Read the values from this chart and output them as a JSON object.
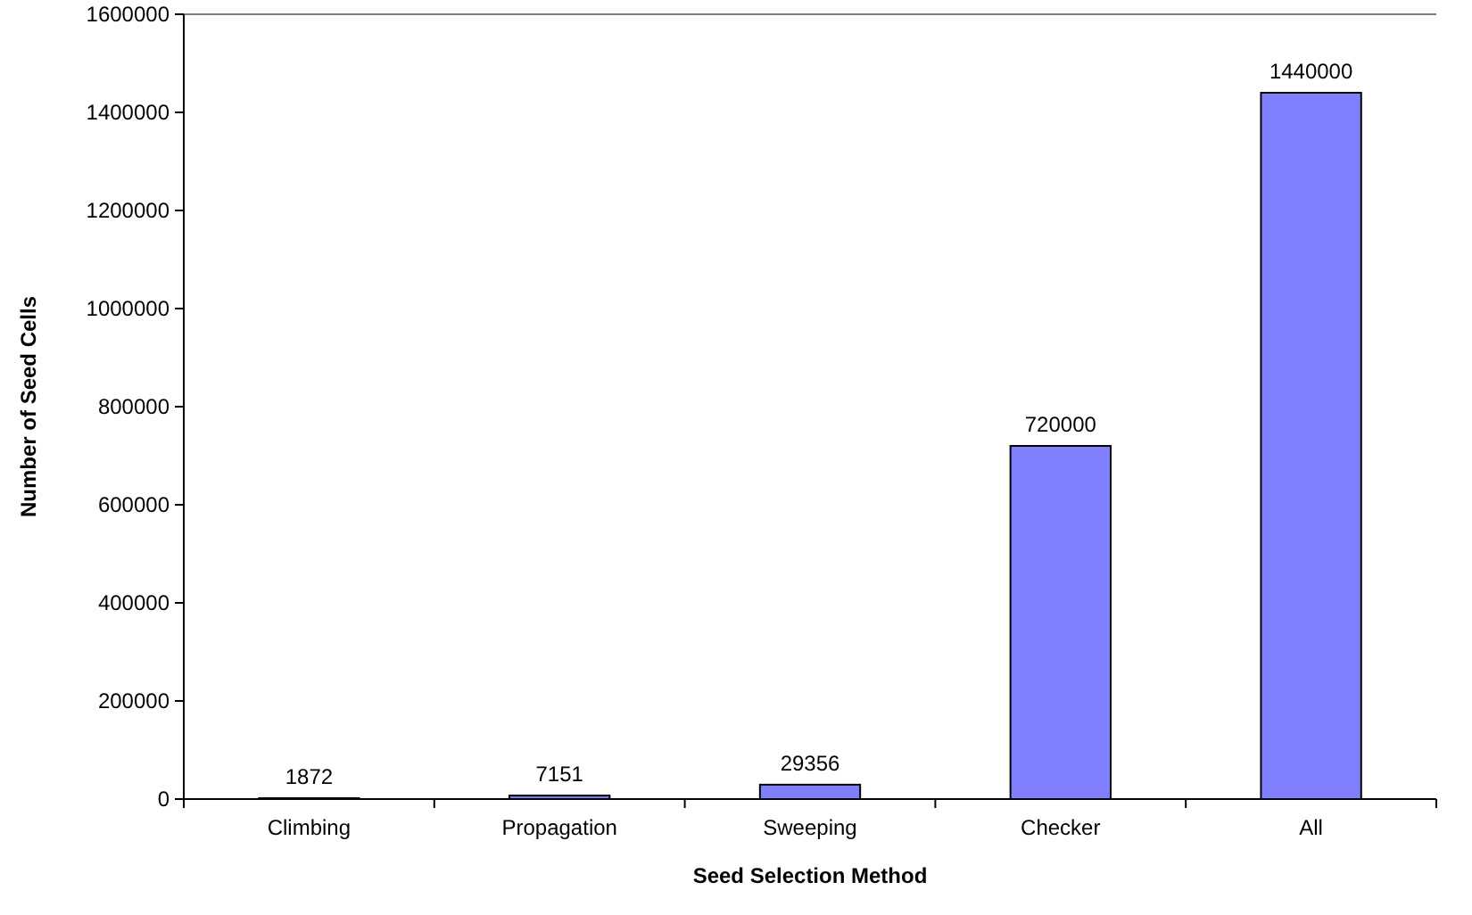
{
  "chart_data": {
    "type": "bar",
    "xlabel": "Seed Selection Method",
    "ylabel": "Number of Seed Cells",
    "categories": [
      "Climbing",
      "Propagation",
      "Sweeping",
      "Checker",
      "All"
    ],
    "values": [
      1872,
      7151,
      29356,
      720000,
      1440000
    ],
    "color": "#8080ff",
    "ylim": [
      0,
      1600000
    ],
    "yticks": [
      0,
      200000,
      400000,
      600000,
      800000,
      1000000,
      1200000,
      1400000,
      1600000
    ],
    "grid": false,
    "data_labels": true
  }
}
